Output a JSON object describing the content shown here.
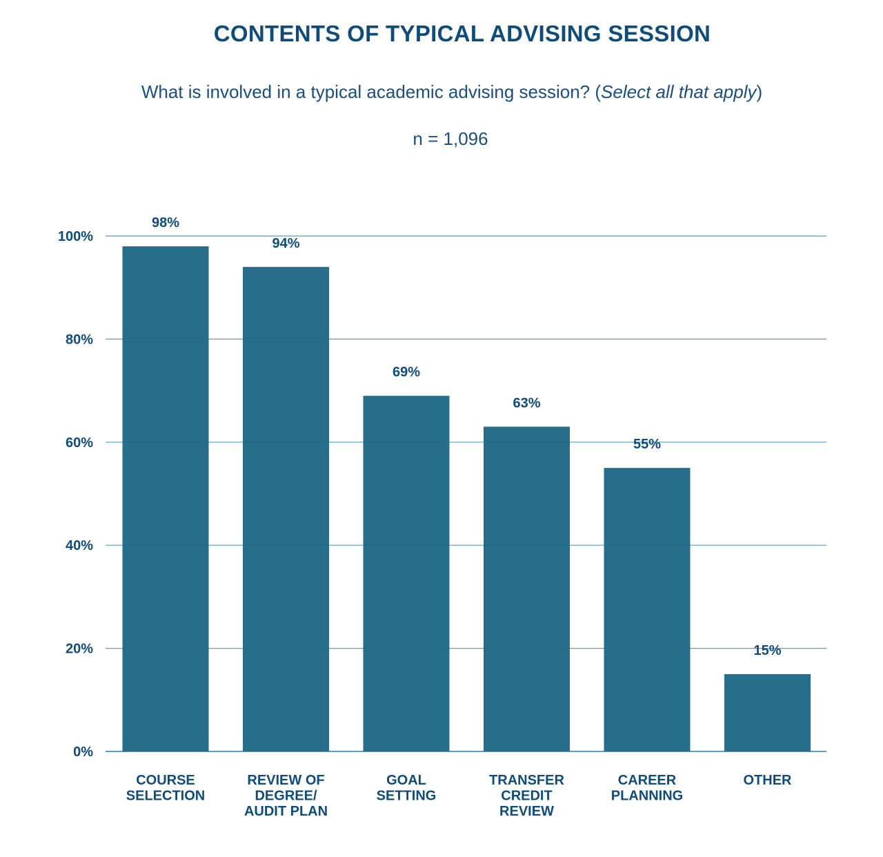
{
  "title": "CONTENTS OF TYPICAL ADVISING SESSION",
  "subtitle": {
    "main": "What is involved in a typical academic advising session? (",
    "italic": "Select all that apply",
    "close": ")"
  },
  "sample_size": "n = 1,096",
  "colors": {
    "bar": "#1f6986",
    "gridline": "#5a9fbd",
    "text": "#0f4c7a"
  },
  "chart_data": {
    "type": "bar",
    "title": "CONTENTS OF TYPICAL ADVISING SESSION",
    "subtitle": "What is involved in a typical academic advising session? (Select all that apply)",
    "annotation": "n = 1,096",
    "xlabel": "",
    "ylabel": "",
    "ylim": [
      0,
      100
    ],
    "yticks": [
      0,
      20,
      40,
      60,
      80,
      100
    ],
    "ytick_labels": [
      "0%",
      "20%",
      "40%",
      "60%",
      "80%",
      "100%"
    ],
    "grid": true,
    "legend": "none",
    "categories": [
      [
        "COURSE",
        "SELECTION"
      ],
      [
        "REVIEW OF",
        "DEGREE/",
        "AUDIT PLAN"
      ],
      [
        "GOAL",
        "SETTING"
      ],
      [
        "TRANSFER",
        "CREDIT",
        "REVIEW"
      ],
      [
        "CAREER",
        "PLANNING"
      ],
      [
        "OTHER"
      ]
    ],
    "values": [
      98,
      94,
      69,
      63,
      55,
      15
    ],
    "data_labels": [
      "98%",
      "94%",
      "69%",
      "63%",
      "55%",
      "15%"
    ]
  }
}
